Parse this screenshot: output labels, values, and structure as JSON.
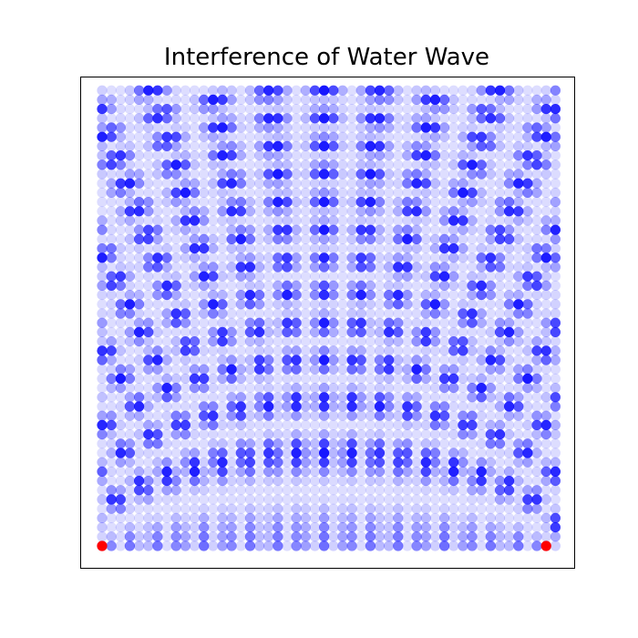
{
  "chart_data": {
    "type": "scatter",
    "title": "Interference of Water Wave",
    "xlabel": "",
    "ylabel": "",
    "grid": false,
    "axes_visible": false,
    "xlim": [
      -1,
      50
    ],
    "ylim": [
      -1,
      50
    ],
    "grid_points": {
      "count_x": 50,
      "count_y": 50,
      "x_start": 0,
      "y_start": 0,
      "step": 1
    },
    "intensity_model": {
      "description": "alpha proportional to superposition of two circular waves from the sources",
      "wavelength": 5.2,
      "min_alpha": 0.08,
      "max_alpha": 1.0
    },
    "point_color": "#0000ff",
    "sources": [
      {
        "x": 0,
        "y": 0,
        "color": "#ff0000"
      },
      {
        "x": 48,
        "y": 0,
        "color": "#ff0000"
      }
    ]
  }
}
